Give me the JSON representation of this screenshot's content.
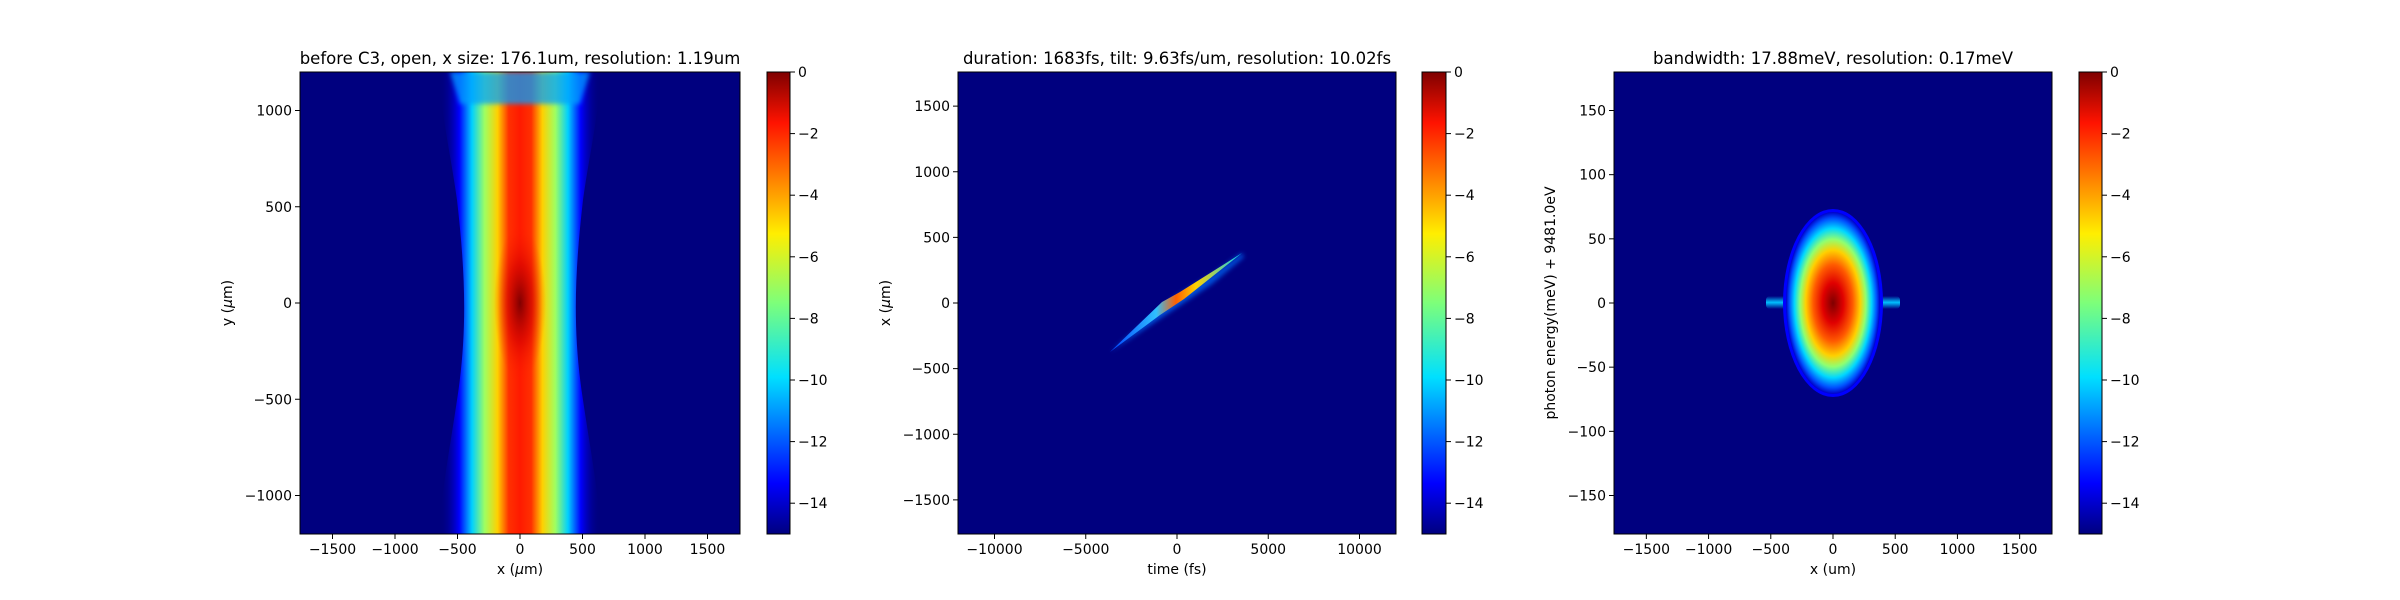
{
  "chart_data": [
    {
      "type": "heatmap",
      "title": "before C3, open, x size: 176.1um, resolution: 1.19um",
      "xlabel": "x ($\\mu$m)",
      "ylabel": "y ($\\mu$m)",
      "xlim": [
        -1760,
        1760
      ],
      "ylim": [
        -1200,
        1200
      ],
      "xticks": [
        -1500,
        -1000,
        -500,
        0,
        500,
        1000,
        1500
      ],
      "yticks": [
        -1000,
        -500,
        0,
        500,
        1000
      ],
      "colorbar": {
        "range": [
          -15,
          0
        ],
        "ticks": [
          0,
          -2,
          -4,
          -6,
          -8,
          -10,
          -12,
          -14
        ],
        "colormap": "jet"
      },
      "features": {
        "shape": "vertical band",
        "center_x": 0,
        "max_half_width": 520,
        "min_half_width": 330,
        "peak_at_y": 0
      }
    },
    {
      "type": "heatmap",
      "title": "duration: 1683fs, tilt: 9.63fs/um, resolution: 10.02fs",
      "xlabel": "time (fs)",
      "ylabel": "x ($\\mu$m)",
      "xlim": [
        -12000,
        12000
      ],
      "ylim": [
        -1760,
        1760
      ],
      "xticks": [
        -10000,
        -5000,
        0,
        5000,
        10000
      ],
      "yticks": [
        -1500,
        -1000,
        -500,
        0,
        500,
        1000,
        1500
      ],
      "colorbar": {
        "range": [
          -15,
          0
        ],
        "ticks": [
          0,
          -2,
          -4,
          -6,
          -8,
          -10,
          -12,
          -14
        ],
        "colormap": "jet"
      },
      "features": {
        "shape": "tilted streak",
        "from": [
          -3700,
          -370
        ],
        "to": [
          3600,
          370
        ]
      }
    },
    {
      "type": "heatmap",
      "title": "bandwidth: 17.88meV, resolution: 0.17meV",
      "xlabel": "x (um)",
      "ylabel": "photon energy(meV) + 9481.0eV",
      "xlim": [
        -1760,
        1760
      ],
      "ylim": [
        -180,
        180
      ],
      "xticks": [
        -1500,
        -1000,
        -500,
        0,
        500,
        1000,
        1500
      ],
      "yticks": [
        -150,
        -100,
        -50,
        0,
        50,
        100,
        150
      ],
      "colorbar": {
        "range": [
          -15,
          0
        ],
        "ticks": [
          0,
          -2,
          -4,
          -6,
          -8,
          -10,
          -12,
          -14
        ],
        "colormap": "jet"
      },
      "features": {
        "shape": "ellipse",
        "half_width_x": 360,
        "half_height_e": 68,
        "side_wings_to_x": 540
      }
    }
  ]
}
